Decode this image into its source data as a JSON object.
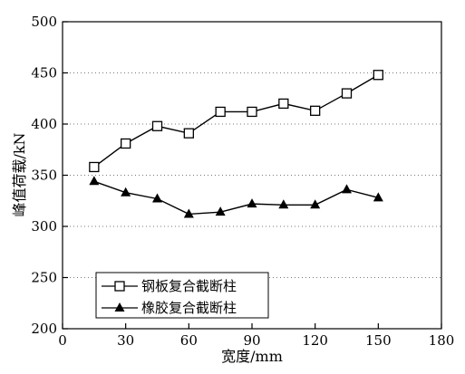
{
  "chart_data": {
    "type": "line",
    "title": "",
    "xlabel": "宽度/mm",
    "ylabel": "峰值荷载/kN",
    "xlim": [
      0,
      180
    ],
    "ylim": [
      200,
      500
    ],
    "xticks": [
      0,
      30,
      60,
      90,
      120,
      150,
      180
    ],
    "yticks": [
      200,
      250,
      300,
      350,
      400,
      450,
      500
    ],
    "grid": "horizontal dotted",
    "legend_position": "bottom-left",
    "x": [
      15,
      30,
      45,
      60,
      75,
      90,
      105,
      120,
      135,
      150
    ],
    "series": [
      {
        "name": "钢板复合截断柱",
        "marker": "open-square",
        "color": "#000000",
        "values": [
          358,
          381,
          398,
          391,
          412,
          412,
          420,
          413,
          430,
          448
        ]
      },
      {
        "name": "橡胶复合截断柱",
        "marker": "filled-triangle",
        "color": "#000000",
        "values": [
          344,
          333,
          327,
          312,
          314,
          322,
          321,
          321,
          336,
          328
        ]
      }
    ]
  }
}
